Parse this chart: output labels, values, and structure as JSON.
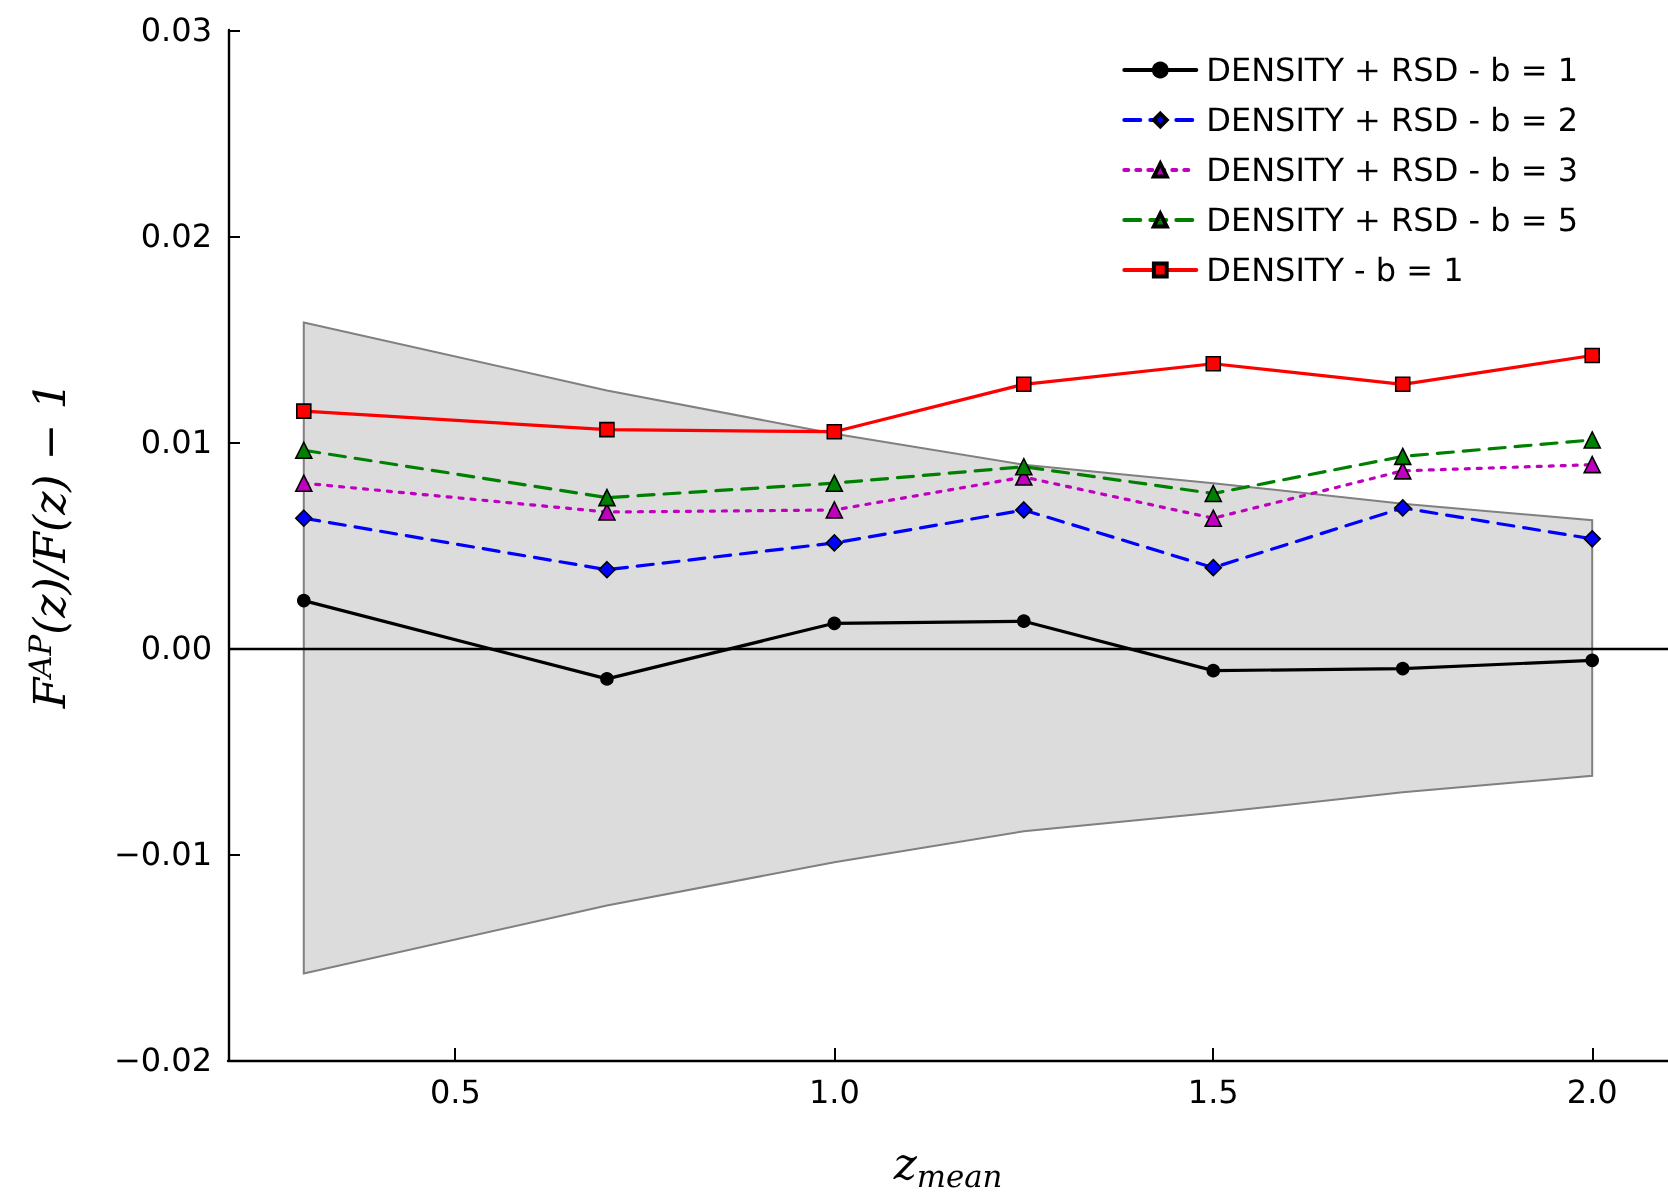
{
  "chart_data": {
    "type": "line",
    "xlabel": "z$_{mean}$",
    "ylabel": "F$^{AP}$(z)/F(z) − 1",
    "x": [
      0.3,
      0.7,
      1.0,
      1.25,
      1.5,
      1.75,
      2.0
    ],
    "series": [
      {
        "type": "area",
        "color": "#dcdcdc",
        "values": [
          null,
          null,
          null,
          null,
          null,
          null,
          null
        ],
        "lower": [
          -0.0158,
          -0.0125,
          -0.0104,
          -0.0089,
          -0.008,
          -0.007,
          -0.0062
        ],
        "upper": [
          0.0158,
          0.0125,
          0.0104,
          0.0089,
          0.008,
          0.007,
          0.0062
        ]
      },
      {
        "name": "DENSITY + RSD - b = 1",
        "color": "#000000",
        "marker": "circle",
        "line_style": "solid",
        "values": [
          0.0023,
          -0.0015,
          0.0012,
          0.0013,
          -0.0011,
          -0.001,
          -0.0006
        ]
      },
      {
        "name": "DENSITY + RSD - b = 2",
        "color": "#0000ff",
        "marker": "diamond",
        "line_style": "dashed",
        "values": [
          0.0063,
          0.0038,
          0.0051,
          0.0067,
          0.0039,
          0.0068,
          0.0053
        ]
      },
      {
        "name": "DENSITY + RSD - b = 3",
        "color": "#bf00bf",
        "marker": "triangle",
        "line_style": "dotted",
        "values": [
          0.008,
          0.0066,
          0.0067,
          0.0083,
          0.0063,
          0.0086,
          0.0089
        ]
      },
      {
        "name": "DENSITY + RSD - b = 5",
        "color": "#008000",
        "marker": "triangle",
        "line_style": "dashed",
        "values": [
          0.0096,
          0.0073,
          0.008,
          0.0088,
          0.0075,
          0.0093,
          0.0101
        ]
      },
      {
        "name": "DENSITY - b = 1",
        "color": "#ff0000",
        "marker": "square",
        "line_style": "solid",
        "values": [
          0.0115,
          0.0106,
          0.0105,
          0.0128,
          0.0138,
          0.0128,
          0.0142
        ]
      }
    ],
    "xlim": [
      0.2,
      2.1
    ],
    "xticks": [
      0.5,
      {
        "value": 1,
        "label": "1.0"
      },
      1.5,
      {
        "value": 2,
        "label": "2.0"
      }
    ],
    "ylim": [
      -0.02,
      0.03
    ],
    "yticks": [
      {
        "value": -0.02,
        "label": "−0.02"
      },
      {
        "value": -0.01,
        "label": "−0.01"
      },
      {
        "value": 0,
        "label": "0.00"
      },
      0.01,
      0.02,
      0.03
    ],
    "ref_lines": [
      {
        "axis": "y",
        "value": 0,
        "color": "#000000"
      }
    ],
    "grid": false,
    "legend": "top right"
  }
}
